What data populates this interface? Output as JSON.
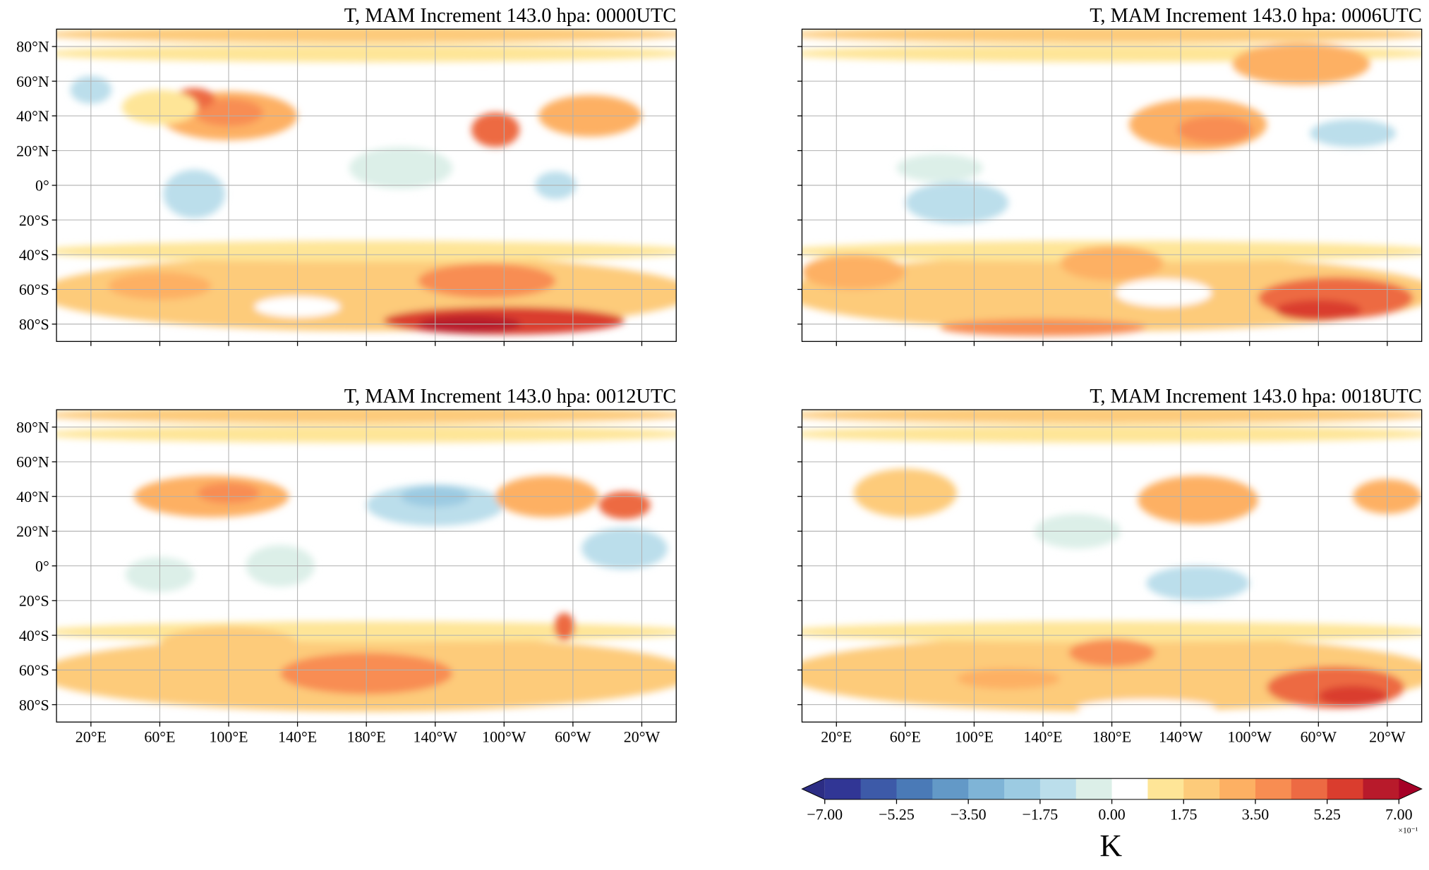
{
  "panels": [
    {
      "title": "T, MAM Increment 143.0 hpa: 0000UTC"
    },
    {
      "title": "T, MAM Increment 143.0 hpa: 0006UTC"
    },
    {
      "title": "T, MAM Increment 143.0 hpa: 0012UTC"
    },
    {
      "title": "T, MAM Increment 143.0 hpa: 0018UTC"
    }
  ],
  "xlim": [
    0,
    360
  ],
  "ylim": [
    -90,
    90
  ],
  "lat_ticks": [
    {
      "value": 80,
      "label": "80°N"
    },
    {
      "value": 60,
      "label": "60°N"
    },
    {
      "value": 40,
      "label": "40°N"
    },
    {
      "value": 20,
      "label": "20°N"
    },
    {
      "value": 0,
      "label": "0°"
    },
    {
      "value": -20,
      "label": "20°S"
    },
    {
      "value": -40,
      "label": "40°S"
    },
    {
      "value": -60,
      "label": "60°S"
    },
    {
      "value": -80,
      "label": "80°S"
    }
  ],
  "lon_ticks": [
    {
      "value": 20,
      "label": "20°E"
    },
    {
      "value": 60,
      "label": "60°E"
    },
    {
      "value": 100,
      "label": "100°E"
    },
    {
      "value": 140,
      "label": "140°E"
    },
    {
      "value": 180,
      "label": "180°E"
    },
    {
      "value": 220,
      "label": "140°W"
    },
    {
      "value": 260,
      "label": "100°W"
    },
    {
      "value": 300,
      "label": "60°W"
    },
    {
      "value": 340,
      "label": "20°W"
    }
  ],
  "colorbar": {
    "levels": [
      -7,
      -6.125,
      -5.25,
      -4.375,
      -3.5,
      -2.625,
      -1.75,
      -0.875,
      0,
      0.875,
      1.75,
      2.625,
      3.5,
      4.375,
      5.25,
      6.125,
      7
    ],
    "colors": [
      "#313695",
      "#3d5aa8",
      "#4a7ab7",
      "#6399c7",
      "#7fb4d6",
      "#9ccbe2",
      "#bbdeeb",
      "#dcefe8",
      "#ffffff",
      "#fee597",
      "#fdcb7a",
      "#fdb063",
      "#f88d52",
      "#ed6a43",
      "#da3d2e",
      "#b81a2b"
    ],
    "under": "#2c2d84",
    "over": "#a50026",
    "ticks": [
      {
        "value": -7,
        "label": "−7.00"
      },
      {
        "value": -5.25,
        "label": "−5.25"
      },
      {
        "value": -3.5,
        "label": "−3.50"
      },
      {
        "value": -1.75,
        "label": "−1.75"
      },
      {
        "value": 0,
        "label": "0.00"
      },
      {
        "value": 1.75,
        "label": "1.75"
      },
      {
        "value": 3.5,
        "label": "3.50"
      },
      {
        "value": 5.25,
        "label": "5.25"
      },
      {
        "value": 7,
        "label": "7.00"
      }
    ],
    "unit": "K",
    "multiplier": "×10⁻¹"
  }
}
